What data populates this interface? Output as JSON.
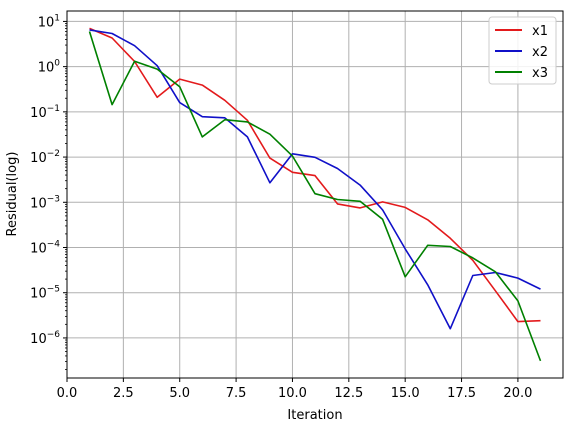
{
  "chart_data": {
    "type": "line",
    "title": "",
    "xlabel": "Iteration",
    "ylabel": "Residual(log)",
    "yscale": "log",
    "xlim": [
      0.0,
      22.0
    ],
    "ylim": [
      1.3e-07,
      17
    ],
    "grid": true,
    "legend": "top-right",
    "x_ticks": [
      0.0,
      2.5,
      5.0,
      7.5,
      10.0,
      12.5,
      15.0,
      17.5,
      20.0
    ],
    "x_tick_labels": [
      "0.0",
      "2.5",
      "5.0",
      "7.5",
      "10.0",
      "12.5",
      "15.0",
      "17.5",
      "20.0"
    ],
    "y_ticks": [
      {
        "value": 10.0,
        "base": "10",
        "exp": "1"
      },
      {
        "value": 1.0,
        "base": "10",
        "exp": "0"
      },
      {
        "value": 0.1,
        "base": "10",
        "exp": "−1"
      },
      {
        "value": 0.01,
        "base": "10",
        "exp": "−2"
      },
      {
        "value": 0.001,
        "base": "10",
        "exp": "−3"
      },
      {
        "value": 0.0001,
        "base": "10",
        "exp": "−4"
      },
      {
        "value": 1e-05,
        "base": "10",
        "exp": "−5"
      },
      {
        "value": 1e-06,
        "base": "10",
        "exp": "−6"
      }
    ],
    "x": [
      1,
      2,
      3,
      4,
      5,
      6,
      7,
      8,
      9,
      10,
      11,
      12,
      13,
      14,
      15,
      16,
      17,
      18,
      19,
      20,
      21
    ],
    "series": [
      {
        "name": "x1",
        "color": "#e31a1c",
        "values": [
          7.0,
          4.3,
          1.3,
          0.21,
          0.53,
          0.39,
          0.18,
          0.065,
          0.0095,
          0.0046,
          0.0039,
          0.00092,
          0.00075,
          0.00102,
          0.00077,
          0.00041,
          0.00016,
          5.2e-05,
          1.1e-05,
          2.3e-06,
          2.4e-06
        ]
      },
      {
        "name": "x2",
        "color": "#1010c8",
        "values": [
          6.5,
          5.4,
          2.9,
          1.05,
          0.16,
          0.078,
          0.074,
          0.028,
          0.0027,
          0.0118,
          0.0099,
          0.0056,
          0.0024,
          0.00068,
          9.3e-05,
          1.5e-05,
          1.6e-06,
          2.4e-05,
          2.8e-05,
          2.1e-05,
          1.2e-05
        ]
      },
      {
        "name": "x3",
        "color": "#008000",
        "values": [
          6.0,
          0.145,
          1.32,
          0.88,
          0.36,
          0.028,
          0.067,
          0.06,
          0.032,
          0.0105,
          0.00155,
          0.00115,
          0.00105,
          0.00042,
          2.25e-05,
          0.000112,
          0.000105,
          5.9e-05,
          2.9e-05,
          6.6e-06,
          3.1e-07
        ]
      }
    ]
  }
}
